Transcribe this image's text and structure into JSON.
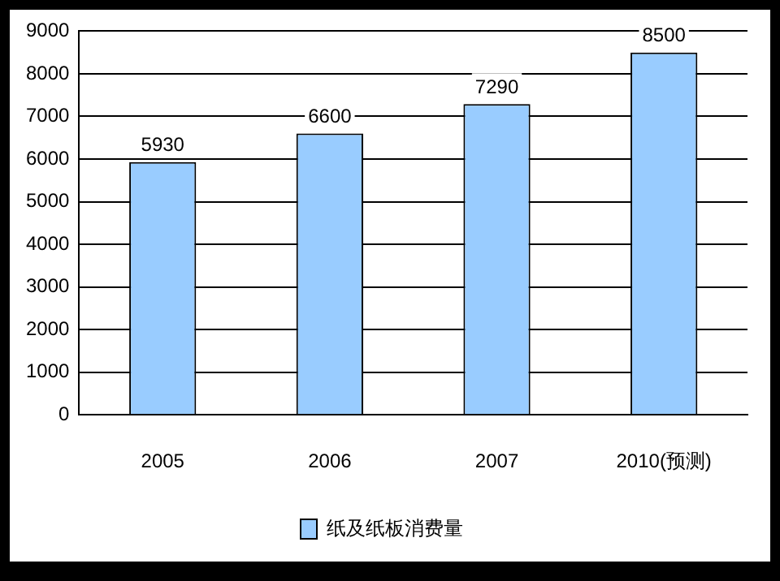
{
  "chart_data": {
    "type": "bar",
    "categories": [
      "2005",
      "2006",
      "2007",
      "2010(预测)"
    ],
    "series": [
      {
        "name": "纸及纸板消费量",
        "color": "#99ccff",
        "values": [
          5930,
          6600,
          7290,
          8500
        ]
      }
    ],
    "ylim": [
      0,
      9000
    ],
    "yticks": [
      0,
      1000,
      2000,
      3000,
      4000,
      5000,
      6000,
      7000,
      8000,
      9000
    ],
    "grid": "y",
    "legend": "bottom",
    "data_labels": true
  }
}
